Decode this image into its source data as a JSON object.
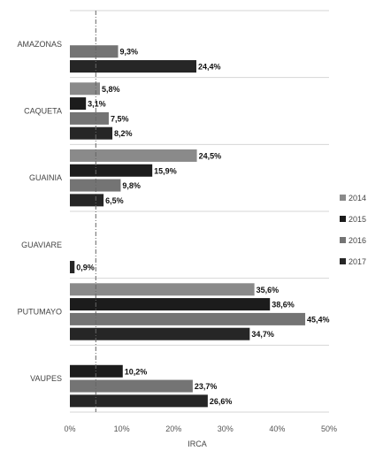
{
  "chart_data": {
    "type": "bar",
    "orientation": "horizontal",
    "xlabel": "IRCA",
    "xlim": [
      0,
      50
    ],
    "xticks": [
      "0%",
      "10%",
      "20%",
      "30%",
      "40%",
      "50%"
    ],
    "reference_line": 5,
    "legend_position": "right",
    "grid": false,
    "categories": [
      "AMAZONAS",
      "CAQUETA",
      "GUAINIA",
      "GUAVIARE",
      "PUTUMAYO",
      "VAUPES"
    ],
    "series": [
      {
        "name": "2014",
        "color": "#8a8a8a"
      },
      {
        "name": "2015",
        "color": "#1c1c1c"
      },
      {
        "name": "2016",
        "color": "#747474"
      },
      {
        "name": "2017",
        "color": "#262626"
      }
    ],
    "bars": [
      {
        "category": "AMAZONAS",
        "series": "2016",
        "value": 9.3,
        "label": "9,3%"
      },
      {
        "category": "AMAZONAS",
        "series": "2017",
        "value": 24.4,
        "label": "24,4%"
      },
      {
        "category": "CAQUETA",
        "series": "2014",
        "value": 5.8,
        "label": "5,8%"
      },
      {
        "category": "CAQUETA",
        "series": "2015",
        "value": 3.1,
        "label": "3,1%"
      },
      {
        "category": "CAQUETA",
        "series": "2016",
        "value": 7.5,
        "label": "7,5%"
      },
      {
        "category": "CAQUETA",
        "series": "2017",
        "value": 8.2,
        "label": "8,2%"
      },
      {
        "category": "GUAINIA",
        "series": "2014",
        "value": 24.5,
        "label": "24,5%"
      },
      {
        "category": "GUAINIA",
        "series": "2015",
        "value": 15.9,
        "label": "15,9%"
      },
      {
        "category": "GUAINIA",
        "series": "2016",
        "value": 9.8,
        "label": "9,8%"
      },
      {
        "category": "GUAINIA",
        "series": "2017",
        "value": 6.5,
        "label": "6,5%"
      },
      {
        "category": "GUAVIARE",
        "series": "2017",
        "value": 0.9,
        "label": "0,9%"
      },
      {
        "category": "PUTUMAYO",
        "series": "2014",
        "value": 35.6,
        "label": "35,6%"
      },
      {
        "category": "PUTUMAYO",
        "series": "2015",
        "value": 38.6,
        "label": "38,6%"
      },
      {
        "category": "PUTUMAYO",
        "series": "2016",
        "value": 45.4,
        "label": "45,4%"
      },
      {
        "category": "PUTUMAYO",
        "series": "2017",
        "value": 34.7,
        "label": "34,7%"
      },
      {
        "category": "VAUPES",
        "series": "2015",
        "value": 10.2,
        "label": "10,2%"
      },
      {
        "category": "VAUPES",
        "series": "2016",
        "value": 23.7,
        "label": "23,7%"
      },
      {
        "category": "VAUPES",
        "series": "2017",
        "value": 26.6,
        "label": "26,6%"
      }
    ]
  }
}
